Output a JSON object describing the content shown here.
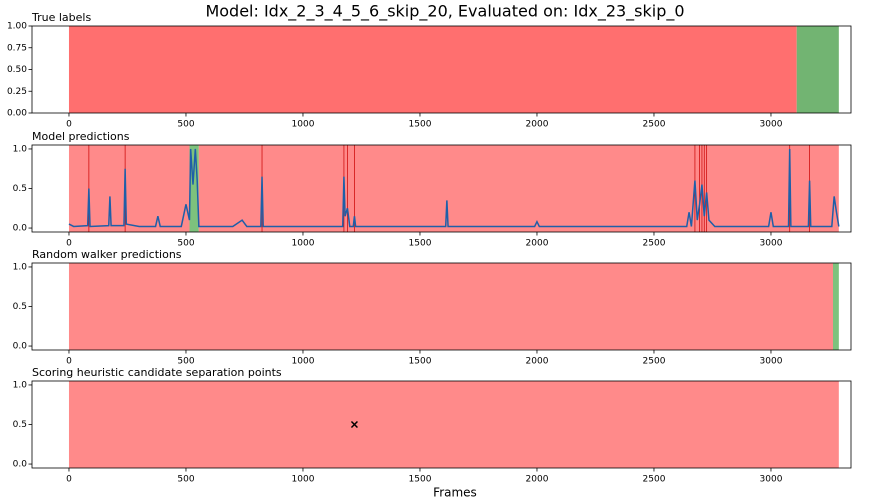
{
  "title": "Model: Idx_2_3_4_5_6_skip_20, Evaluated on: Idx_23_skip_0",
  "xlabel": "Frames",
  "chart_data": [
    {
      "type": "span",
      "title": "True labels",
      "xlim": [
        -158,
        3342
      ],
      "xticks": [
        0,
        500,
        1000,
        1500,
        2000,
        2500,
        3000
      ],
      "ylim": [
        0,
        1
      ],
      "yticks": [
        {
          "value": 0,
          "label": "0.00"
        },
        0.25,
        {
          "value": 0.5,
          "label": "0.50"
        },
        0.75,
        {
          "value": 1,
          "label": "1.00"
        }
      ],
      "spans": [
        {
          "start": 0,
          "end": 3110,
          "color": "#ff6f6f"
        },
        {
          "start": 3110,
          "end": 3290,
          "color": "#72b472"
        }
      ]
    },
    {
      "type": "line",
      "title": "Model predictions",
      "xlim": [
        -158,
        3342
      ],
      "xticks": [
        0,
        500,
        1000,
        1500,
        2000,
        2500,
        3000
      ],
      "ylim": [
        -0.05,
        1.05
      ],
      "yticks": [
        {
          "value": 0,
          "label": "0.0"
        },
        0.5,
        {
          "value": 1,
          "label": "1.0"
        }
      ],
      "spans": [
        {
          "start": 0,
          "end": 515,
          "color": "#ff8a8a"
        },
        {
          "start": 515,
          "end": 555,
          "color": "#7dc27d"
        },
        {
          "start": 555,
          "end": 3290,
          "color": "#ff8a8a"
        }
      ],
      "vlines": {
        "x": [
          85,
          240,
          825,
          1175,
          1190,
          1220,
          2675,
          2695,
          2705,
          2715,
          2725,
          3080,
          3165
        ],
        "color": "#d01010"
      },
      "color": "#1f5fa8",
      "x": [
        0,
        20,
        80,
        85,
        90,
        170,
        175,
        180,
        235,
        240,
        245,
        300,
        370,
        380,
        390,
        480,
        500,
        515,
        520,
        530,
        540,
        548,
        555,
        700,
        740,
        760,
        820,
        825,
        830,
        1170,
        1175,
        1180,
        1190,
        1200,
        1215,
        1220,
        1225,
        1610,
        1615,
        1620,
        1990,
        2000,
        2010,
        2640,
        2650,
        2660,
        2675,
        2685,
        2695,
        2705,
        2715,
        2725,
        2735,
        2760,
        2990,
        3000,
        3010,
        3075,
        3080,
        3085,
        3160,
        3165,
        3170,
        3260,
        3270,
        3280,
        3290
      ],
      "values": [
        0.05,
        0.02,
        0.03,
        0.5,
        0.02,
        0.03,
        0.4,
        0.03,
        0.03,
        0.75,
        0.05,
        0.02,
        0.02,
        0.15,
        0.02,
        0.02,
        0.3,
        0.1,
        1.0,
        0.55,
        1.0,
        0.6,
        0.02,
        0.02,
        0.1,
        0.02,
        0.02,
        0.65,
        0.02,
        0.02,
        0.65,
        0.15,
        0.25,
        0.02,
        0.02,
        0.15,
        0.02,
        0.02,
        0.35,
        0.02,
        0.02,
        0.08,
        0.02,
        0.02,
        0.2,
        0.02,
        0.6,
        0.1,
        0.3,
        0.55,
        0.15,
        0.45,
        0.1,
        0.02,
        0.02,
        0.2,
        0.02,
        0.02,
        1.0,
        0.02,
        0.02,
        0.6,
        0.02,
        0.02,
        0.4,
        0.2,
        0.02
      ]
    },
    {
      "type": "span",
      "title": "Random walker predictions",
      "xlim": [
        -158,
        3342
      ],
      "xticks": [
        0,
        500,
        1000,
        1500,
        2000,
        2500,
        3000
      ],
      "ylim": [
        -0.05,
        1.05
      ],
      "yticks": [
        {
          "value": 0,
          "label": "0.0"
        },
        0.5,
        {
          "value": 1,
          "label": "1.0"
        }
      ],
      "spans": [
        {
          "start": 0,
          "end": 3265,
          "color": "#ff8a8a"
        },
        {
          "start": 3265,
          "end": 3290,
          "color": "#7dc27d"
        }
      ]
    },
    {
      "type": "scatter",
      "title": "Scoring heuristic candidate separation points",
      "xlim": [
        -158,
        3342
      ],
      "xticks": [
        0,
        500,
        1000,
        1500,
        2000,
        2500,
        3000
      ],
      "ylim": [
        -0.05,
        1.05
      ],
      "yticks": [
        {
          "value": 0,
          "label": "0.0"
        },
        0.5,
        {
          "value": 1,
          "label": "1.0"
        }
      ],
      "spans": [
        {
          "start": 0,
          "end": 3290,
          "color": "#ff8a8a"
        }
      ],
      "color": "#000000",
      "x": [
        1220
      ],
      "values": [
        0.5
      ]
    }
  ]
}
